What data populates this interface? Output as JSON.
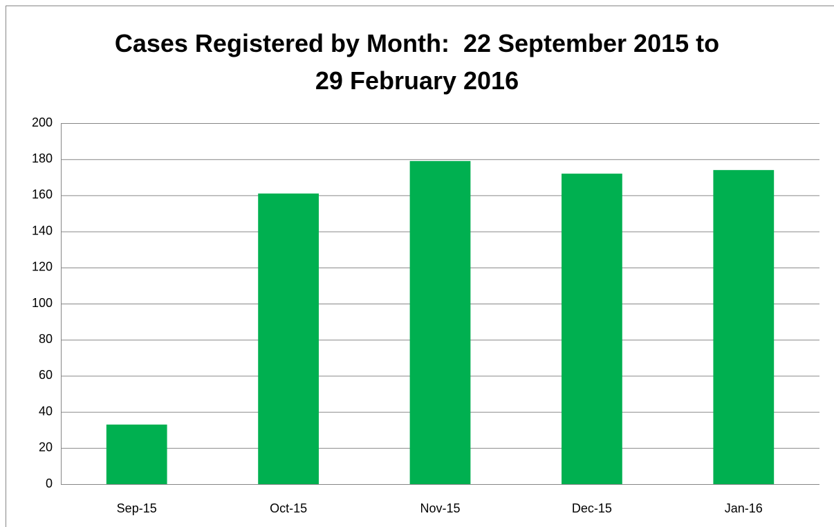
{
  "chart_data": {
    "type": "bar",
    "title": "Cases Registered by Month:  22 September 2015 to 29 February 2016",
    "categories": [
      "Sep-15",
      "Oct-15",
      "Nov-15",
      "Dec-15",
      "Jan-16"
    ],
    "values": [
      33,
      161,
      179,
      172,
      174
    ],
    "color": "#00b050",
    "ylim": [
      0,
      200
    ],
    "yticks": [
      0,
      20,
      40,
      60,
      80,
      100,
      120,
      140,
      160,
      180,
      200
    ],
    "grid": true
  }
}
